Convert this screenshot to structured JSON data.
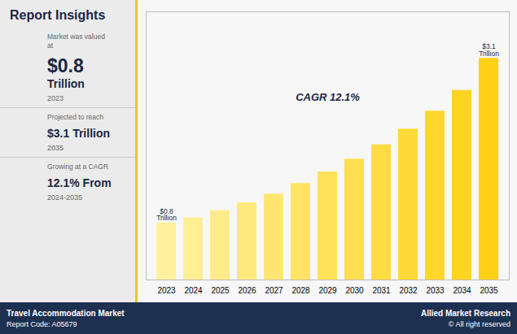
{
  "chart_data": {
    "type": "bar",
    "title": "Report Insights",
    "categories": [
      "2023",
      "2024",
      "2025",
      "2026",
      "2027",
      "2028",
      "2029",
      "2030",
      "2031",
      "2032",
      "2033",
      "2034",
      "2035"
    ],
    "values": [
      0.8,
      0.87,
      0.97,
      1.08,
      1.2,
      1.35,
      1.51,
      1.69,
      1.89,
      2.11,
      2.36,
      2.65,
      3.1
    ],
    "colors": [
      "#fff1a0",
      "#ffee94",
      "#ffec89",
      "#ffe97d",
      "#ffe671",
      "#ffe466",
      "#ffe15a",
      "#ffde4f",
      "#ffdc43",
      "#ffd937",
      "#ffd62c",
      "#ffd420",
      "#ffd114"
    ],
    "ylim": [
      0,
      3.75
    ],
    "tick_labels": "x",
    "grid": false,
    "annotations": [
      {
        "text": "$0.8\nTrillion",
        "x": "2023"
      },
      {
        "text": "$3.1\nTrillion",
        "x": "2035"
      },
      {
        "text": "CAGR 12.1%",
        "x": "2029",
        "y": 2.55
      }
    ],
    "insights": [
      [
        "Market was valued\nat",
        "$0.8",
        "Trillion",
        "2023"
      ],
      [
        "Projected to reach",
        "$3.1 Trillion",
        "2035"
      ],
      [
        "Growing at a CAGR",
        "12.1% From",
        "2024-2035"
      ]
    ],
    "footer": {
      "left": [
        "Travel Accommodation Market",
        "Report Code: A05679"
      ],
      "right": [
        "Allied Market Research",
        "© All right reserved"
      ]
    }
  }
}
